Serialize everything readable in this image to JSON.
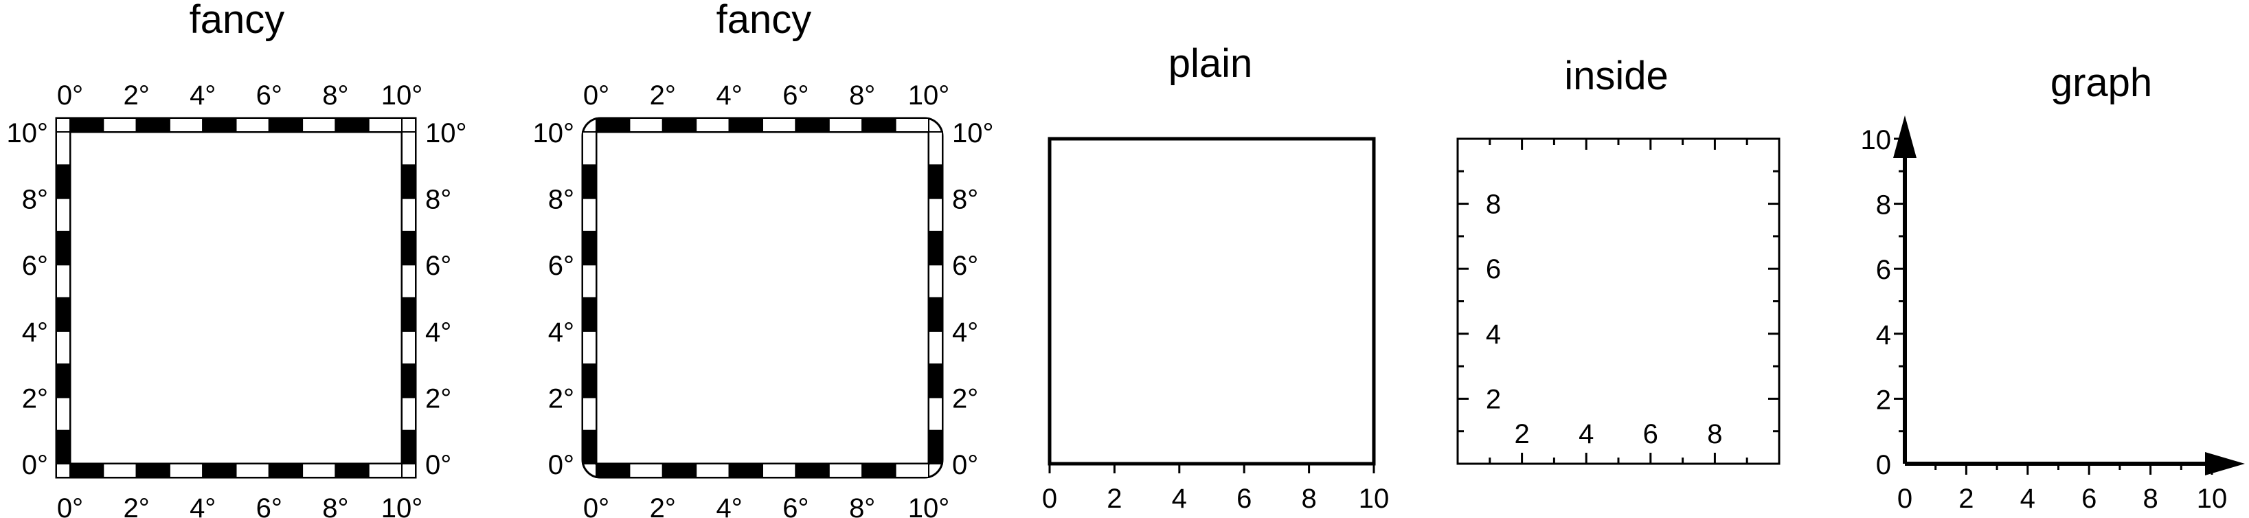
{
  "panels": [
    {
      "id": "fancy",
      "title": "fancy",
      "style": "fancy",
      "tick_values": [
        0,
        2,
        4,
        6,
        8,
        10
      ],
      "tick_labels": [
        "0°",
        "2°",
        "4°",
        "6°",
        "8°",
        "10°"
      ]
    },
    {
      "id": "fancy-rounded",
      "title": "fancy",
      "style": "fancy+",
      "tick_values": [
        0,
        2,
        4,
        6,
        8,
        10
      ],
      "tick_labels": [
        "0°",
        "2°",
        "4°",
        "6°",
        "8°",
        "10°"
      ]
    },
    {
      "id": "plain",
      "title": "plain",
      "style": "plain",
      "tick_values": [
        0,
        2,
        4,
        6,
        8,
        10
      ],
      "tick_labels": [
        "0",
        "2",
        "4",
        "6",
        "8",
        "10"
      ]
    },
    {
      "id": "inside",
      "title": "inside",
      "style": "inside",
      "tick_values": [
        2,
        4,
        6,
        8
      ],
      "tick_labels": [
        "2",
        "4",
        "6",
        "8"
      ]
    },
    {
      "id": "graph",
      "title": "graph",
      "style": "graph",
      "tick_values": [
        0,
        2,
        4,
        6,
        8,
        10
      ],
      "tick_labels": [
        "0",
        "2",
        "4",
        "6",
        "8",
        "10"
      ]
    }
  ],
  "colors": {
    "ink": "#000000",
    "paper": "#ffffff"
  }
}
